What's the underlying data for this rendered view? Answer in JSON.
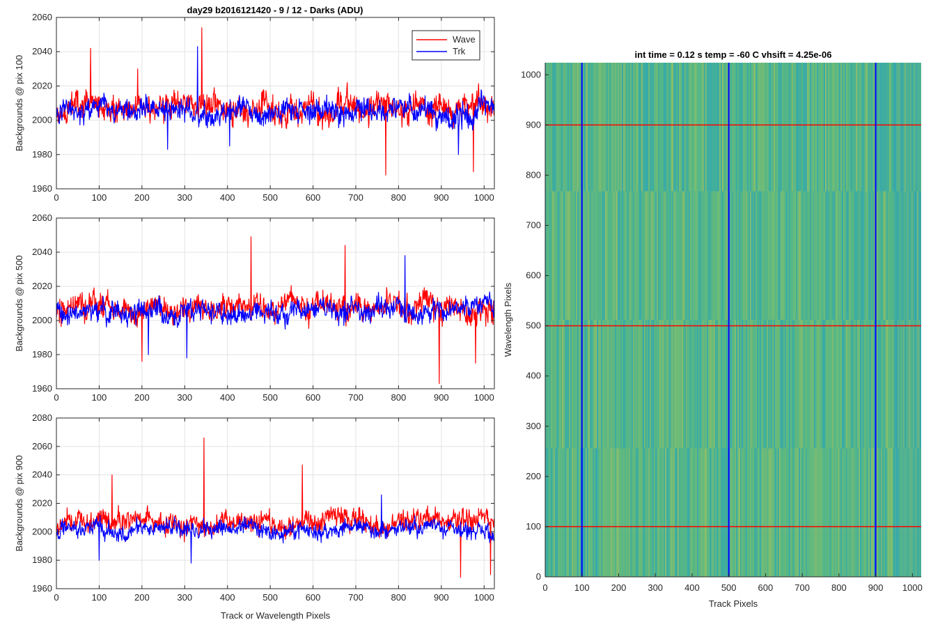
{
  "figure": {
    "title": "day29 b2016121420 - 9 / 12 - Darks (ADU)"
  },
  "chart_data": [
    {
      "type": "line",
      "ylabel": "Backgrounds @ pix 100",
      "xlabel": "",
      "xlim": [
        0,
        1024
      ],
      "ylim": [
        1960,
        2060
      ],
      "xticks": [
        0,
        100,
        200,
        300,
        400,
        500,
        600,
        700,
        800,
        900,
        1000
      ],
      "yticks": [
        1960,
        1980,
        2000,
        2020,
        2040,
        2060
      ],
      "grid": true,
      "legend": "top-right",
      "series": [
        {
          "name": "Wave",
          "color": "#ff0000",
          "mean": 2007,
          "noise": 8,
          "seed": 11,
          "spikes": [
            [
              80,
              2042
            ],
            [
              340,
              2054
            ],
            [
              190,
              2030
            ],
            [
              770,
              1968
            ],
            [
              975,
              1970
            ]
          ]
        },
        {
          "name": "Trk",
          "color": "#0000ff",
          "mean": 2006,
          "noise": 7,
          "seed": 23,
          "spikes": [
            [
              330,
              2043
            ],
            [
              260,
              1983
            ],
            [
              405,
              1985
            ],
            [
              940,
              1980
            ]
          ]
        }
      ]
    },
    {
      "type": "line",
      "ylabel": "Backgrounds @ pix 500",
      "xlabel": "",
      "xlim": [
        0,
        1024
      ],
      "ylim": [
        1960,
        2060
      ],
      "xticks": [
        0,
        100,
        200,
        300,
        400,
        500,
        600,
        700,
        800,
        900,
        1000
      ],
      "yticks": [
        1960,
        1980,
        2000,
        2020,
        2040,
        2060
      ],
      "grid": true,
      "legend": "",
      "series": [
        {
          "name": "Wave",
          "color": "#ff0000",
          "mean": 2008,
          "noise": 8,
          "seed": 37,
          "spikes": [
            [
              455,
              2049
            ],
            [
              675,
              2044
            ],
            [
              895,
              1963
            ],
            [
              200,
              1976
            ],
            [
              980,
              1975
            ]
          ]
        },
        {
          "name": "Trk",
          "color": "#0000ff",
          "mean": 2005,
          "noise": 6,
          "seed": 41,
          "spikes": [
            [
              815,
              2038
            ],
            [
              305,
              1978
            ],
            [
              215,
              1980
            ]
          ]
        }
      ]
    },
    {
      "type": "line",
      "ylabel": "Backgrounds @ pix 900",
      "xlabel": "Track or Wavelength Pixels",
      "xlim": [
        0,
        1024
      ],
      "ylim": [
        1960,
        2080
      ],
      "xticks": [
        0,
        100,
        200,
        300,
        400,
        500,
        600,
        700,
        800,
        900,
        1000
      ],
      "yticks": [
        1960,
        1980,
        2000,
        2020,
        2040,
        2060,
        2080
      ],
      "grid": true,
      "legend": "",
      "series": [
        {
          "name": "Wave",
          "color": "#ff0000",
          "mean": 2008,
          "noise": 8,
          "seed": 53,
          "spikes": [
            [
              345,
              2066
            ],
            [
              575,
              2047
            ],
            [
              130,
              2040
            ],
            [
              945,
              1968
            ],
            [
              1015,
              1970
            ]
          ]
        },
        {
          "name": "Trk",
          "color": "#0000ff",
          "mean": 2002,
          "noise": 6,
          "seed": 67,
          "spikes": [
            [
              315,
              1978
            ],
            [
              100,
              1980
            ],
            [
              760,
              2026
            ]
          ]
        }
      ]
    },
    {
      "type": "heatmap",
      "title": "int time = 0.12 s    temp = -60 C    vhsift = 4.25e-06",
      "xlabel": "Track Pixels",
      "ylabel": "Wavelength Pixels",
      "xlim": [
        0,
        1024
      ],
      "ylim": [
        0,
        1024
      ],
      "xticks": [
        0,
        100,
        200,
        300,
        400,
        500,
        600,
        700,
        800,
        900,
        1000
      ],
      "yticks": [
        0,
        100,
        200,
        300,
        400,
        500,
        600,
        700,
        800,
        900,
        1000
      ],
      "grid": false,
      "base_color": "#4fb48a",
      "vertical_lines": {
        "color": "#0000ff",
        "x": [
          100,
          500,
          900
        ]
      },
      "horizontal_lines": {
        "color": "#ff0000",
        "y": [
          100,
          500,
          900
        ]
      }
    }
  ]
}
